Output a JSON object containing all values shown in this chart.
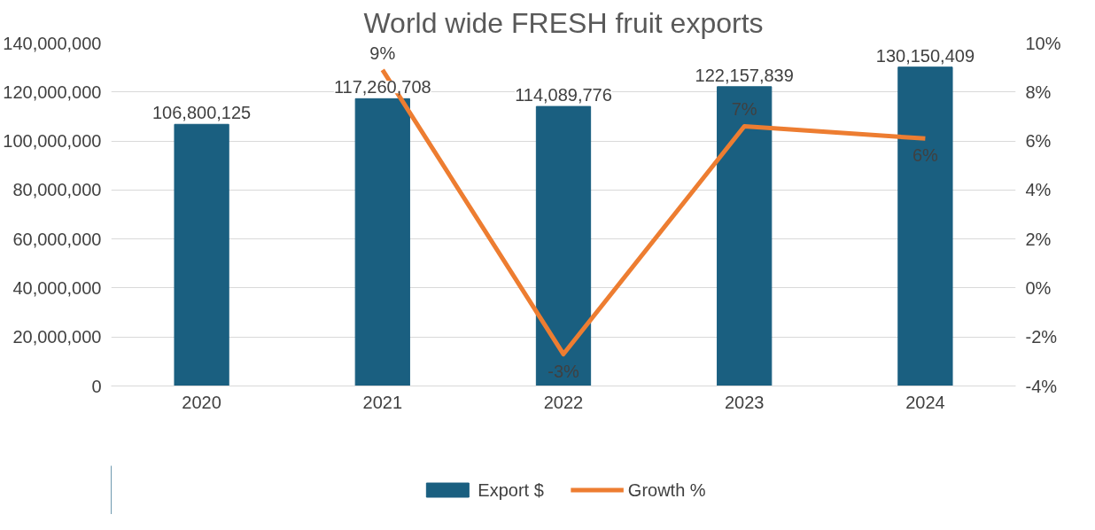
{
  "chart_data": {
    "type": "bar",
    "title": "World wide FRESH fruit exports",
    "categories": [
      "2020",
      "2021",
      "2022",
      "2023",
      "2024"
    ],
    "series": [
      {
        "name": "Export $",
        "color": "#1a5f80",
        "values": [
          106800125,
          117260708,
          114089776,
          122157839,
          130150409
        ],
        "value_labels": [
          "106,800,125",
          "117,260,708",
          "114,089,776",
          "122,157,839",
          "130,150,409"
        ]
      },
      {
        "name": "Growth %",
        "type": "line",
        "axis": "y2",
        "color": "#ed7d31",
        "values": [
          null,
          8.9,
          -2.7,
          6.6,
          6.1
        ],
        "value_labels": [
          null,
          "9%",
          "-3%",
          "7%",
          "6%"
        ]
      }
    ],
    "ylim": [
      0,
      140000000
    ],
    "yticks": [
      0,
      {
        "value": 20000000,
        "label": "20,000,000"
      },
      {
        "value": 40000000,
        "label": "40,000,000"
      },
      {
        "value": 60000000,
        "label": "60,000,000"
      },
      {
        "value": 80000000,
        "label": "80,000,000"
      },
      {
        "value": 100000000,
        "label": "100,000,000"
      },
      {
        "value": 120000000,
        "label": "120,000,000"
      },
      {
        "value": 140000000,
        "label": "140,000,000"
      }
    ],
    "y2lim": [
      -4,
      10
    ],
    "y2ticks": [
      {
        "value": -4,
        "label": "-4%"
      },
      {
        "value": -2,
        "label": "-2%"
      },
      {
        "value": 0,
        "label": "0%"
      },
      {
        "value": 2,
        "label": "2%"
      },
      {
        "value": 4,
        "label": "4%"
      },
      {
        "value": 6,
        "label": "6%"
      },
      {
        "value": 8,
        "label": "8%"
      },
      {
        "value": 10,
        "label": "10%"
      }
    ],
    "grid": "y",
    "legend": "bottom",
    "marker": "none",
    "line_style": "solid"
  }
}
